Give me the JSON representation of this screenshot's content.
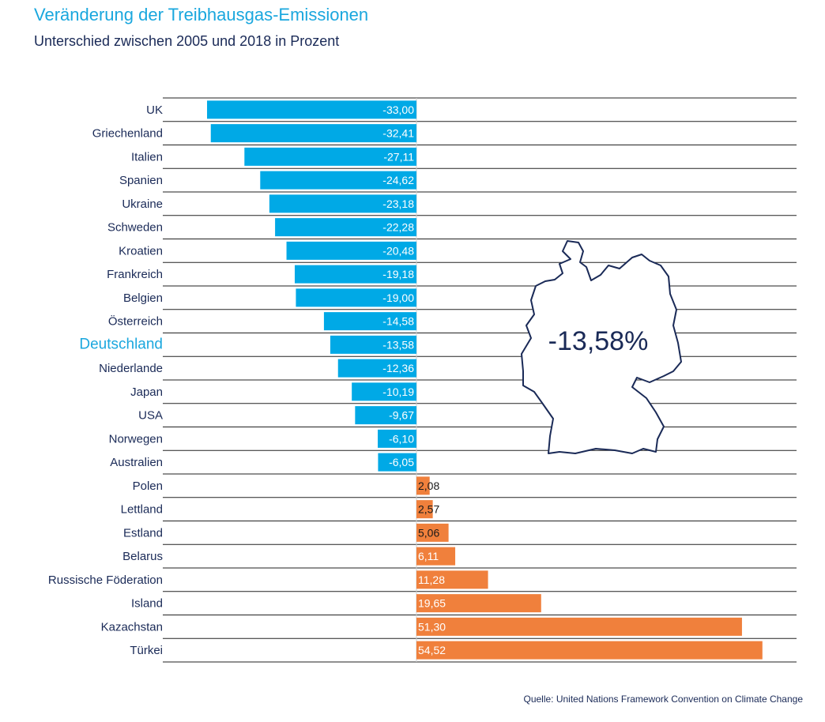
{
  "title": "Veränderung der Treibhausgas-Emissionen",
  "subtitle": "Unterschied zwischen 2005 und 2018 in Prozent",
  "source": "Quelle: United Nations Framework Convention on Climate Change",
  "colors": {
    "negative": "#00a9e6",
    "positive": "#f0803c",
    "highlight": "#1aa7de",
    "text": "#1a2a57",
    "grid": "#222222"
  },
  "map": {
    "icon": "germany-map-icon",
    "label": "-13,58%"
  },
  "chart_data": {
    "type": "bar",
    "orientation": "horizontal",
    "highlight_category": "Deutschland",
    "xlim": [
      -50,
      60
    ],
    "categories": [
      "UK",
      "Griechenland",
      "Italien",
      "Spanien",
      "Ukraine",
      "Schweden",
      "Kroatien",
      "Frankreich",
      "Belgien",
      "Österreich",
      "Deutschland",
      "Niederlande",
      "Japan",
      "USA",
      "Norwegen",
      "Australien",
      "Polen",
      "Lettland",
      "Estland",
      "Belarus",
      "Russische Föderation",
      "Island",
      "Kazachstan",
      "Türkei"
    ],
    "values": [
      -33.0,
      -32.41,
      -27.11,
      -24.62,
      -23.18,
      -22.28,
      -20.48,
      -19.18,
      -19.0,
      -14.58,
      -13.58,
      -12.36,
      -10.19,
      -9.67,
      -6.1,
      -6.05,
      2.08,
      2.57,
      5.06,
      6.11,
      11.28,
      19.65,
      51.3,
      54.52
    ],
    "labels": [
      "-33,00",
      "-32,41",
      "-27,11",
      "-24,62",
      "-23,18",
      "-22,28",
      "-20,48",
      "-19,18",
      "-19,00",
      "-14,58",
      "-13,58",
      "-12,36",
      "-10,19",
      "-9,67",
      "-6,10",
      "-6,05",
      "2,08",
      "2,57",
      "5,06",
      "6,11",
      "11,28",
      "19,65",
      "51,30",
      "54,52"
    ]
  }
}
